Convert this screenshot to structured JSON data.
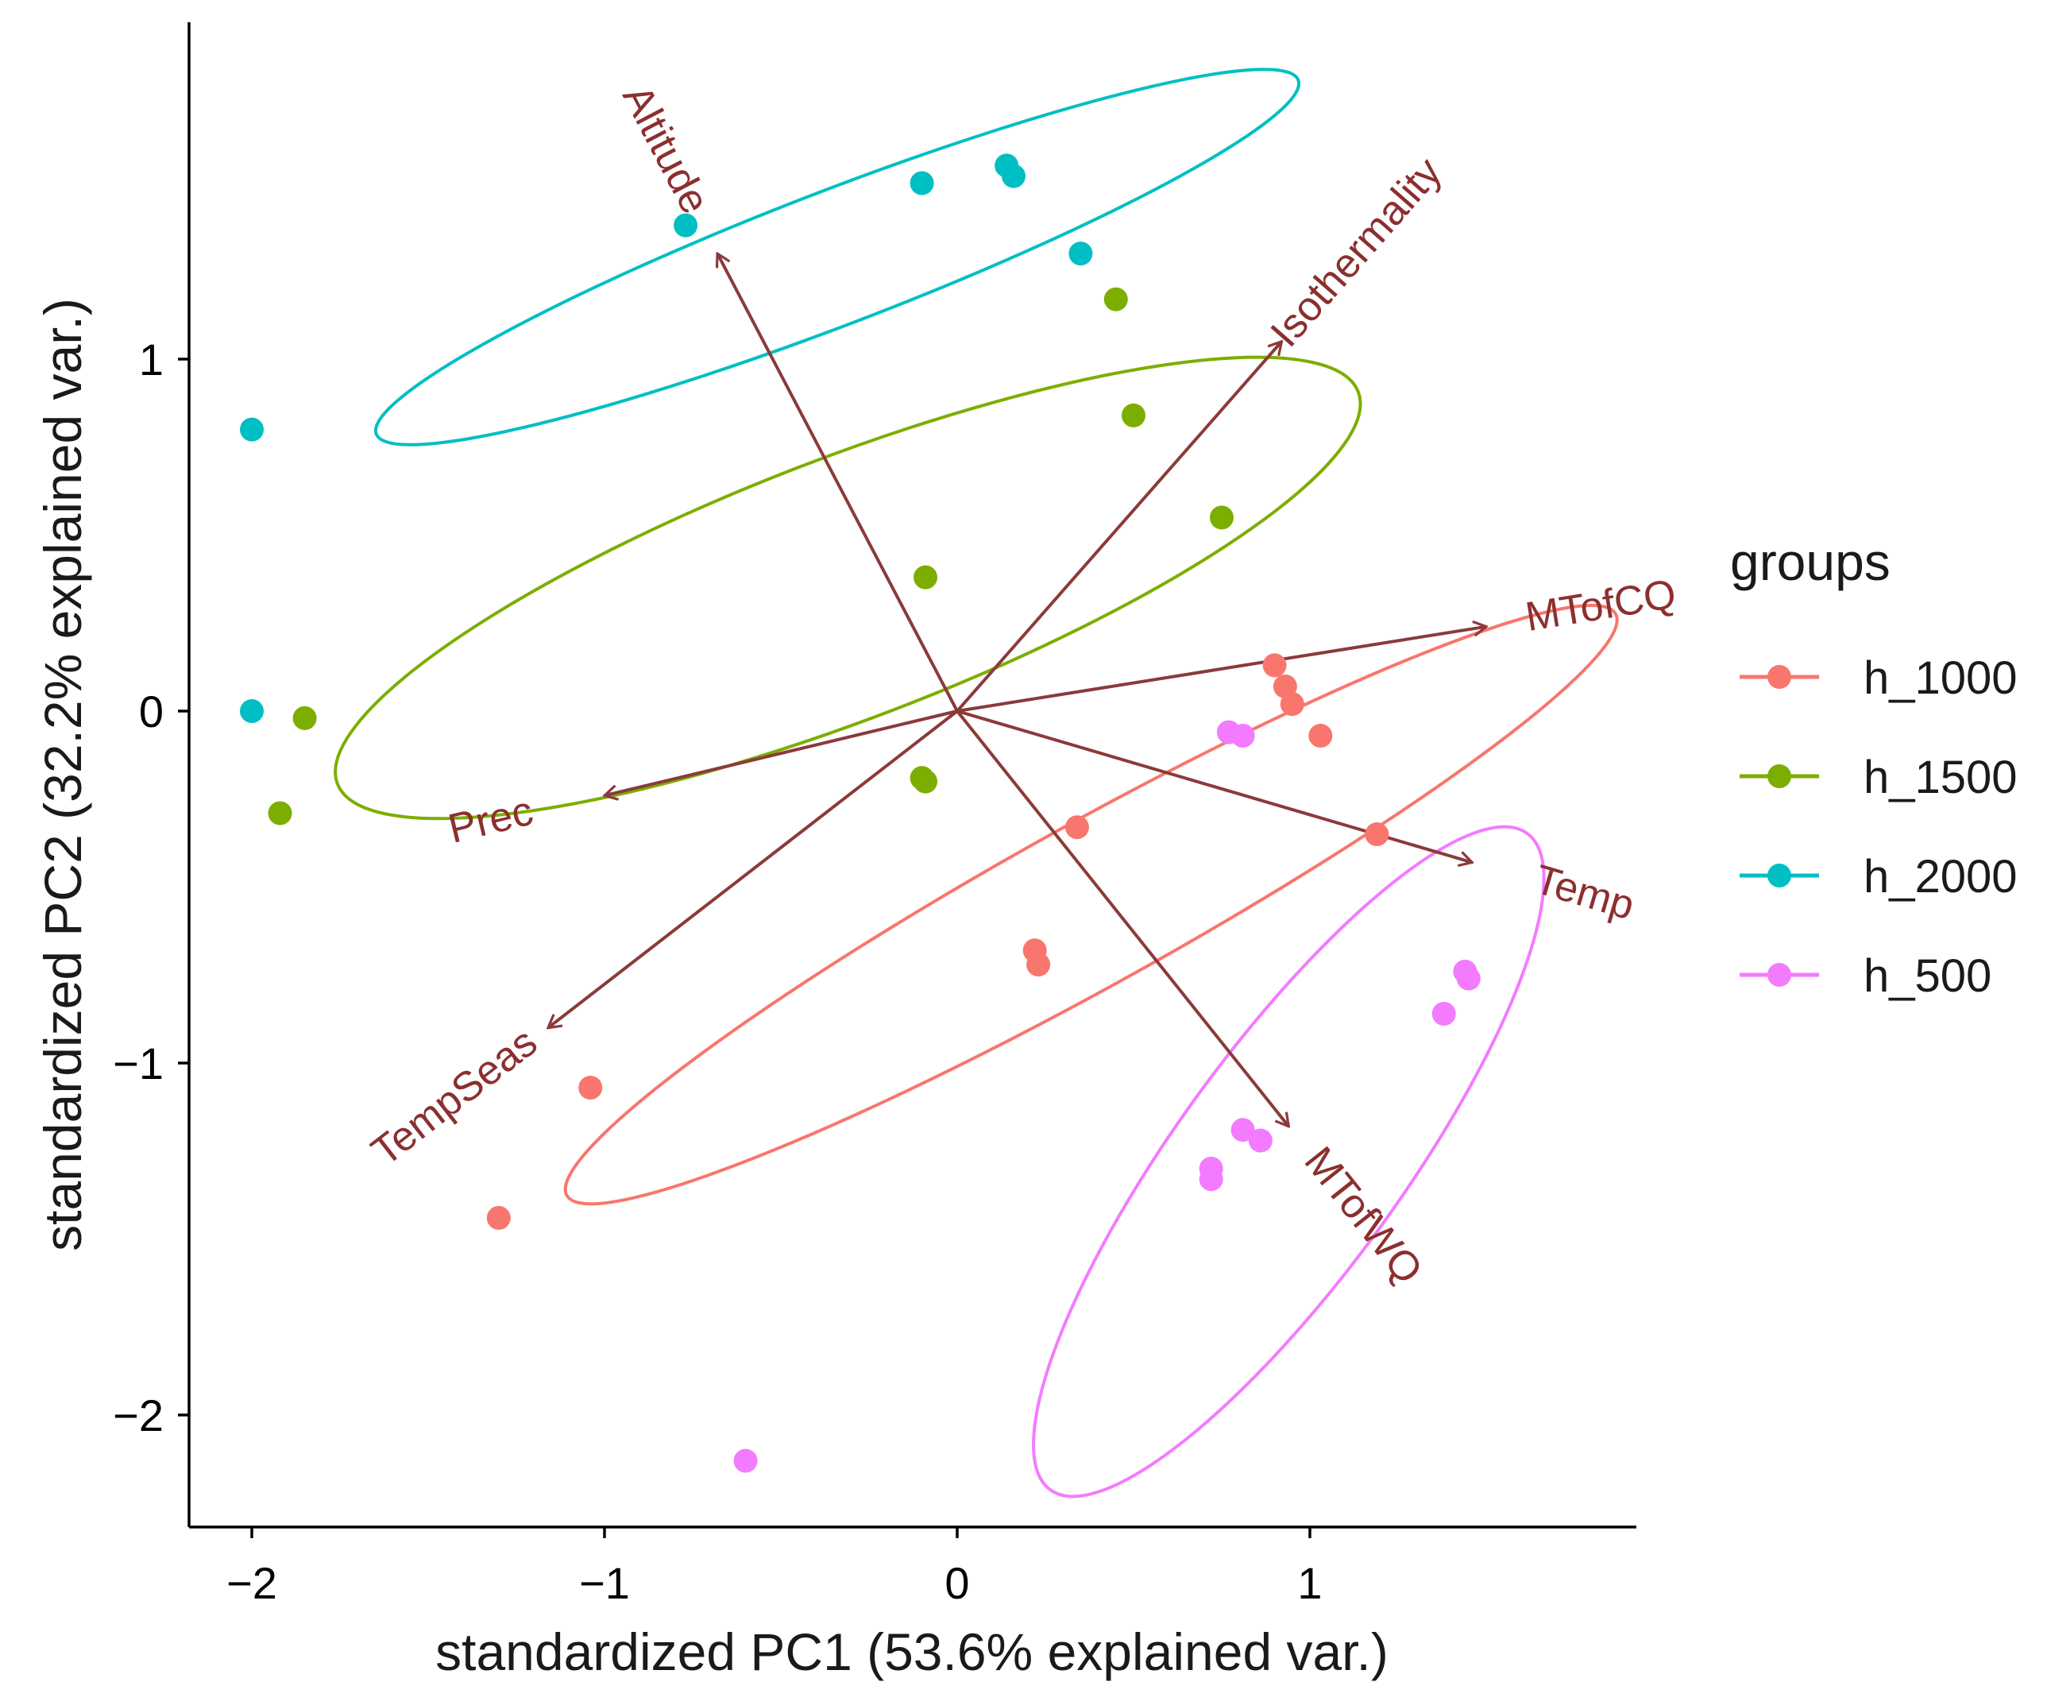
{
  "chart_data": {
    "type": "scatter",
    "xlabel": "standardized PC1 (53.6% explained var.)",
    "ylabel": "standardized PC2 (32.2% explained var.)",
    "xlim": [
      -2.15,
      1.9
    ],
    "ylim": [
      -2.3,
      1.95
    ],
    "x_ticks": [
      {
        "v": -2,
        "label": "−2"
      },
      {
        "v": -1,
        "label": "−1"
      },
      {
        "v": 0,
        "label": "0"
      },
      {
        "v": 1,
        "label": "1"
      }
    ],
    "y_ticks": [
      {
        "v": -2,
        "label": "−2"
      },
      {
        "v": -1,
        "label": "−1"
      },
      {
        "v": 0,
        "label": "0"
      },
      {
        "v": 1,
        "label": "1"
      }
    ],
    "grid": false,
    "legend": {
      "title": "groups",
      "placement": "right"
    },
    "series": [
      {
        "name": "h_1000",
        "color": "#F8766D",
        "points": [
          [
            -1.3,
            -1.44
          ],
          [
            -1.04,
            -1.07
          ],
          [
            0.22,
            -0.68
          ],
          [
            0.23,
            -0.72
          ],
          [
            0.34,
            -0.33
          ],
          [
            0.9,
            0.13
          ],
          [
            0.93,
            0.07
          ],
          [
            0.95,
            0.02
          ],
          [
            1.03,
            -0.07
          ],
          [
            1.19,
            -0.35
          ]
        ],
        "ellipse": {
          "cx": 0.38,
          "cy": -0.55,
          "rx": 1.7,
          "ry": 0.23,
          "angle_deg": 29
        }
      },
      {
        "name": "h_1500",
        "color": "#7CAE00",
        "points": [
          [
            -1.85,
            -0.02
          ],
          [
            -1.92,
            -0.29
          ],
          [
            -0.09,
            0.38
          ],
          [
            -0.1,
            -0.19
          ],
          [
            -0.09,
            -0.2
          ],
          [
            0.45,
            1.17
          ],
          [
            0.5,
            0.84
          ],
          [
            0.75,
            0.55
          ]
        ],
        "ellipse": {
          "cx": -0.31,
          "cy": 0.35,
          "rx": 1.55,
          "ry": 0.37,
          "angle_deg": 21
        }
      },
      {
        "name": "h_2000",
        "color": "#00BFC4",
        "points": [
          [
            -2.0,
            0.8
          ],
          [
            -2.0,
            0.0
          ],
          [
            -0.77,
            1.38
          ],
          [
            -0.1,
            1.5
          ],
          [
            0.14,
            1.55
          ],
          [
            0.16,
            1.52
          ],
          [
            0.35,
            1.3
          ]
        ],
        "ellipse": {
          "cx": -0.34,
          "cy": 1.29,
          "rx": 1.4,
          "ry": 0.19,
          "angle_deg": 21
        }
      },
      {
        "name": "h_500",
        "color": "#F37BFF",
        "points": [
          [
            0.77,
            -0.06
          ],
          [
            0.81,
            -0.07
          ],
          [
            0.81,
            -1.19
          ],
          [
            0.86,
            -1.22
          ],
          [
            0.72,
            -1.3
          ],
          [
            0.72,
            -1.33
          ],
          [
            1.38,
            -0.86
          ],
          [
            1.44,
            -0.74
          ],
          [
            1.45,
            -0.76
          ],
          [
            -0.6,
            -2.13
          ]
        ],
        "ellipse": {
          "cx": 0.94,
          "cy": -1.28,
          "rx": 1.15,
          "ry": 0.32,
          "angle_deg": 54
        }
      }
    ],
    "loadings": [
      {
        "name": "Altitude",
        "x": -0.68,
        "y": 1.3
      },
      {
        "name": "Isothermality",
        "x": 0.92,
        "y": 1.05
      },
      {
        "name": "MTofCQ",
        "x": 1.5,
        "y": 0.24
      },
      {
        "name": "Prec",
        "x": -1.0,
        "y": -0.24
      },
      {
        "name": "Temp",
        "x": 1.46,
        "y": -0.43
      },
      {
        "name": "TempSeas",
        "x": -1.16,
        "y": -0.9
      },
      {
        "name": "MTofWQ",
        "x": 0.94,
        "y": -1.18
      }
    ]
  }
}
